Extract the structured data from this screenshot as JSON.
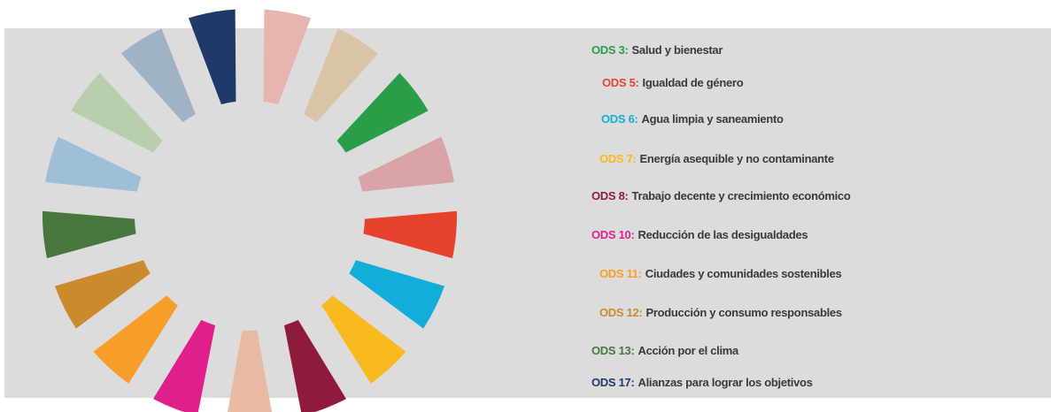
{
  "legend": {
    "items": [
      {
        "code": "ODS 3:",
        "label": "Salud y bienestar",
        "color": "#2a9d48"
      },
      {
        "code": "ODS 5:",
        "label": "Igualdad de género",
        "color": "#e5432e"
      },
      {
        "code": "ODS 6:",
        "label": "Agua limpia y saneamiento",
        "color": "#12aed9"
      },
      {
        "code": "ODS 7:",
        "label": "Energía asequible y no contaminante",
        "color": "#f9b91f"
      },
      {
        "code": "ODS 8:",
        "label": "Trabajo decente y crecimiento económico",
        "color": "#8f1b3c"
      },
      {
        "code": "ODS 10:",
        "label": "Reducción de las desigualdades",
        "color": "#e0208a"
      },
      {
        "code": "ODS 11:",
        "label": "Ciudades y comunidades sostenibles",
        "color": "#f79d2a"
      },
      {
        "code": "ODS 12:",
        "label": "Producción y consumo responsables",
        "color": "#cc8a2c"
      },
      {
        "code": "ODS 13:",
        "label": "Acción por el clima",
        "color": "#48773e"
      },
      {
        "code": "ODS 17:",
        "label": "Alianzas para lograr los objetivos",
        "color": "#1f3a68"
      }
    ]
  },
  "wheel": {
    "colors": [
      "#e8b4b0",
      "#d9c5a6",
      "#2a9d48",
      "#d9a3a8",
      "#e5432e",
      "#12aed9",
      "#f9b91f",
      "#8f1b3c",
      "#e8baa2",
      "#e0208a",
      "#f79d2a",
      "#cc8a2c",
      "#48773e",
      "#9fbfd6",
      "#b7cfad",
      "#9fb3c5",
      "#1f3a68"
    ]
  }
}
